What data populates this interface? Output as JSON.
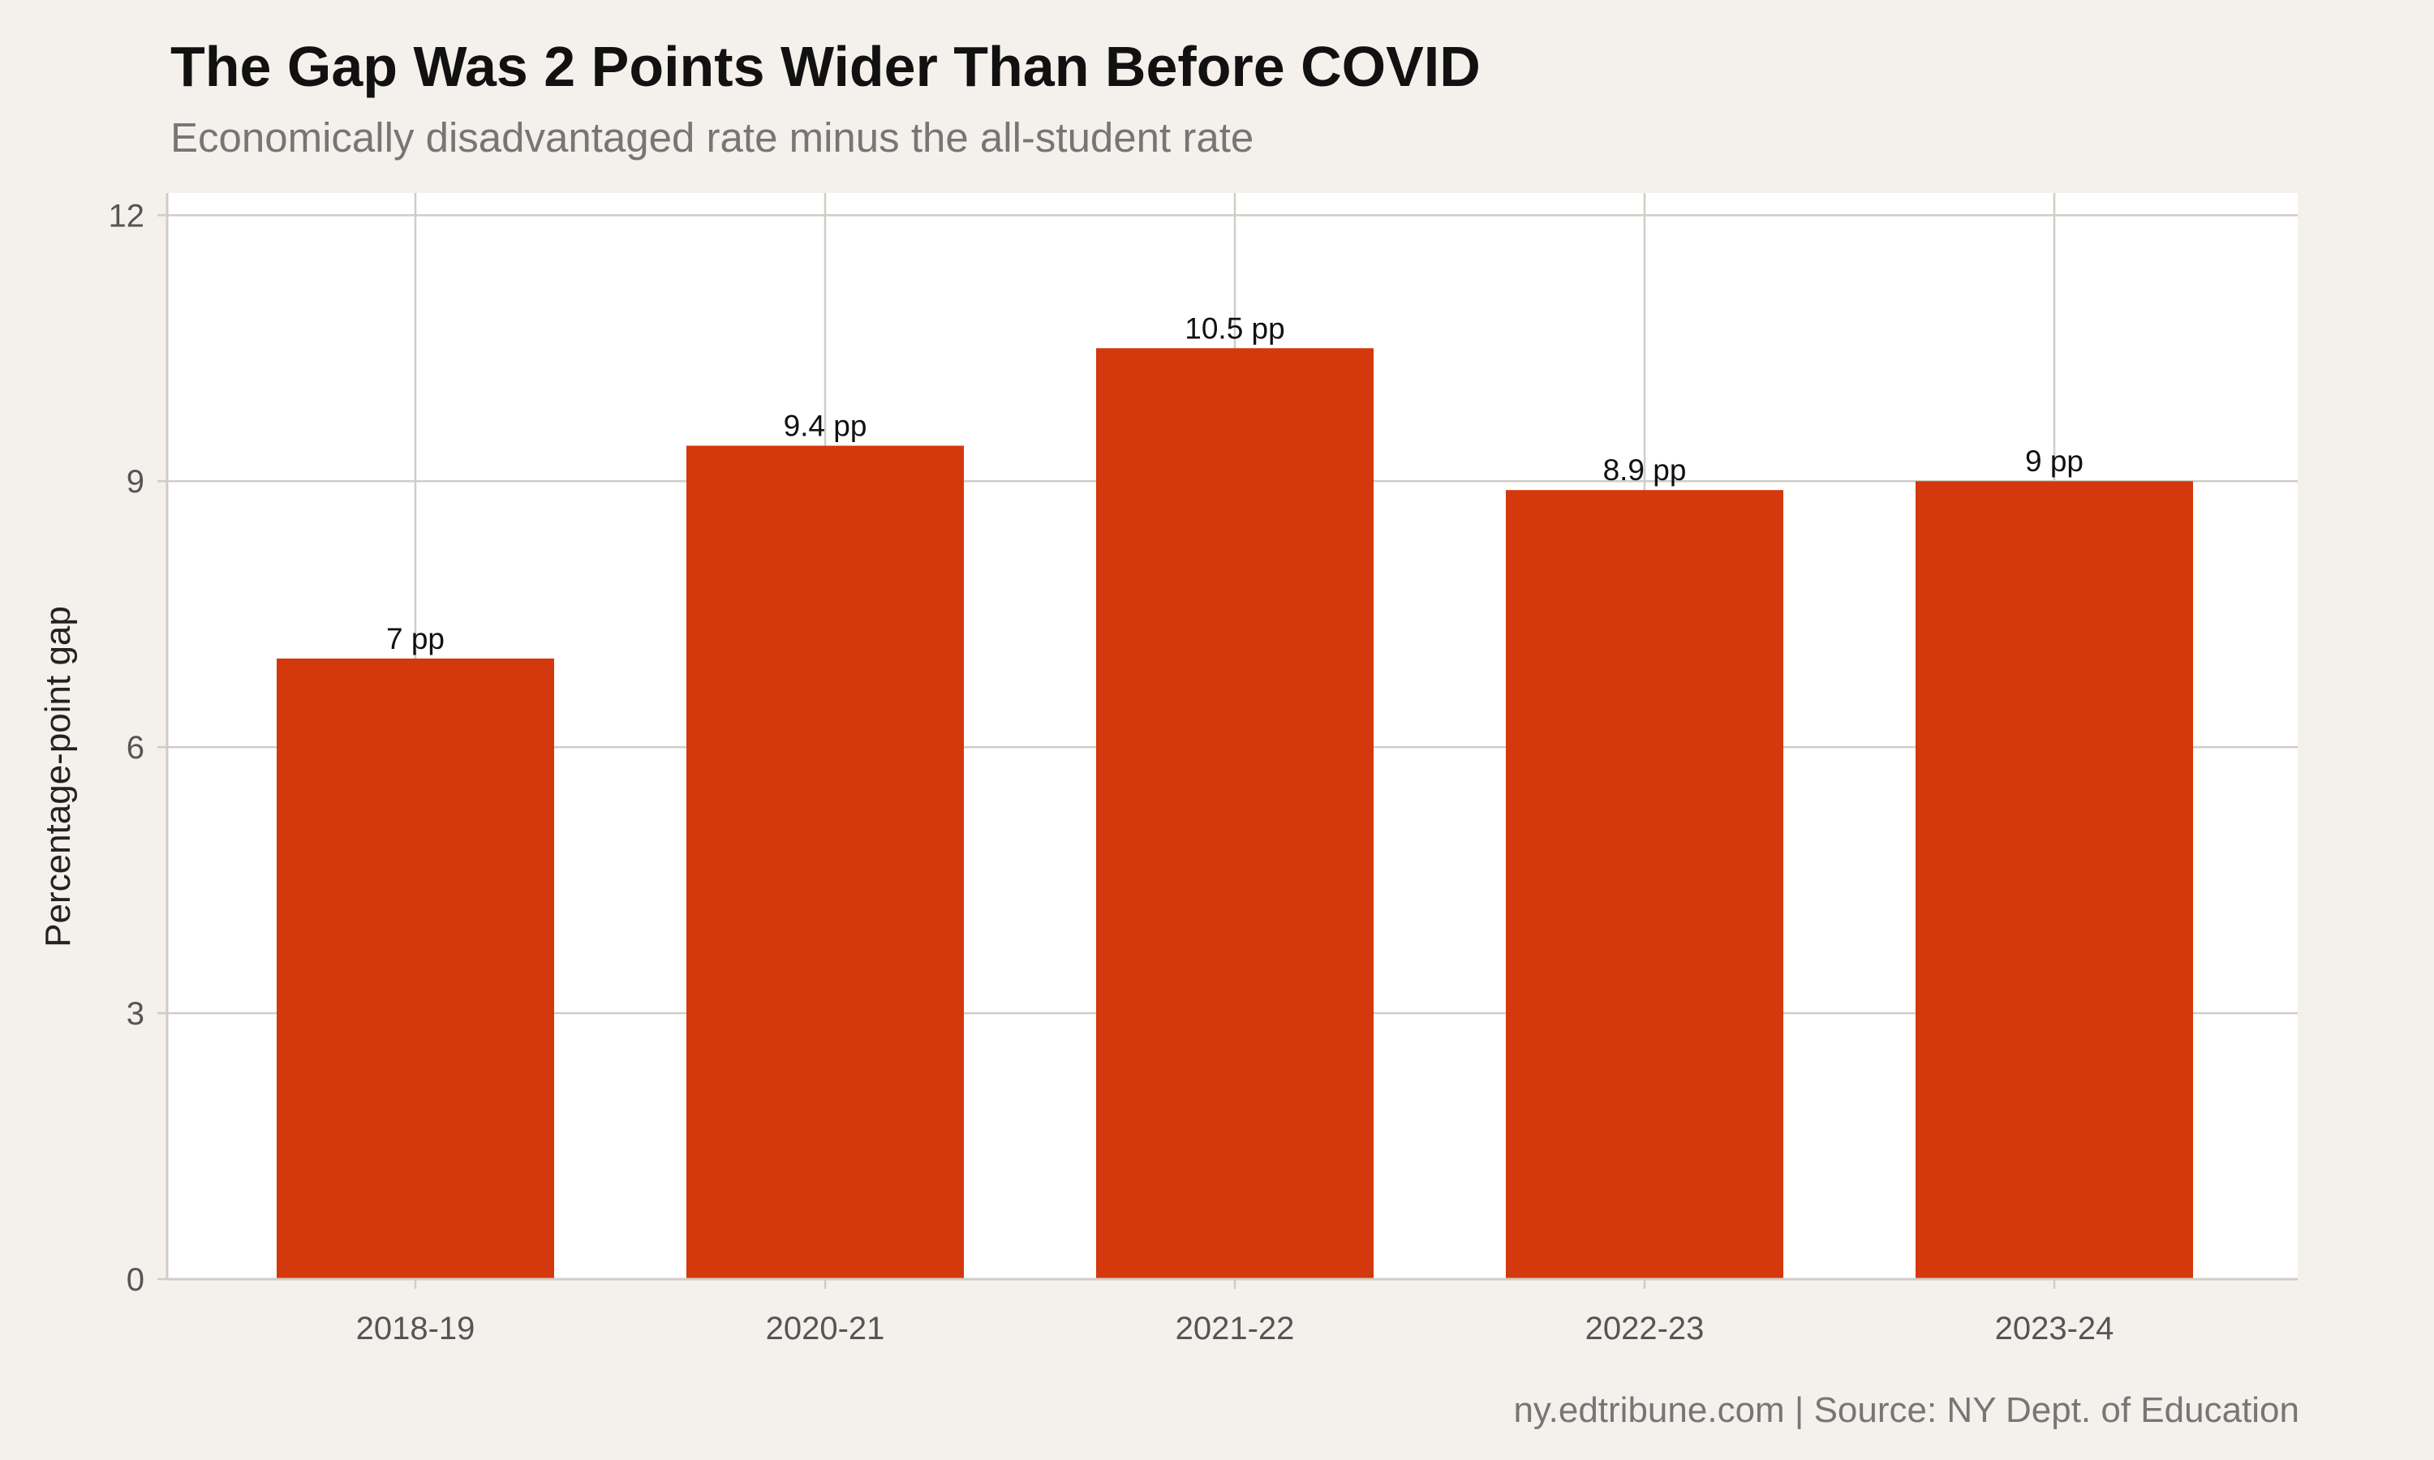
{
  "chart_data": {
    "type": "bar",
    "title": "The Gap Was 2 Points Wider Than Before COVID",
    "subtitle": "Economically disadvantaged rate minus the all-student rate",
    "caption": "ny.edtribune.com | Source: NY Dept. of Education",
    "xlabel": "",
    "ylabel": "Percentage-point gap",
    "categories": [
      "2018-19",
      "2020-21",
      "2021-22",
      "2022-23",
      "2023-24"
    ],
    "values": [
      7,
      9.4,
      10.5,
      8.9,
      9
    ],
    "data_labels": [
      "7 pp",
      "9.4 pp",
      "10.5 pp",
      "8.9 pp",
      "9 pp"
    ],
    "y_ticks": [
      0,
      3,
      6,
      9,
      12
    ],
    "ylim": [
      0,
      12.25
    ],
    "grid": true,
    "legend": "none",
    "colors": {
      "bar": "#d4380d",
      "panel": "#ffffff",
      "background": "#f4f1ec",
      "grid": "#cfcdc6"
    }
  }
}
